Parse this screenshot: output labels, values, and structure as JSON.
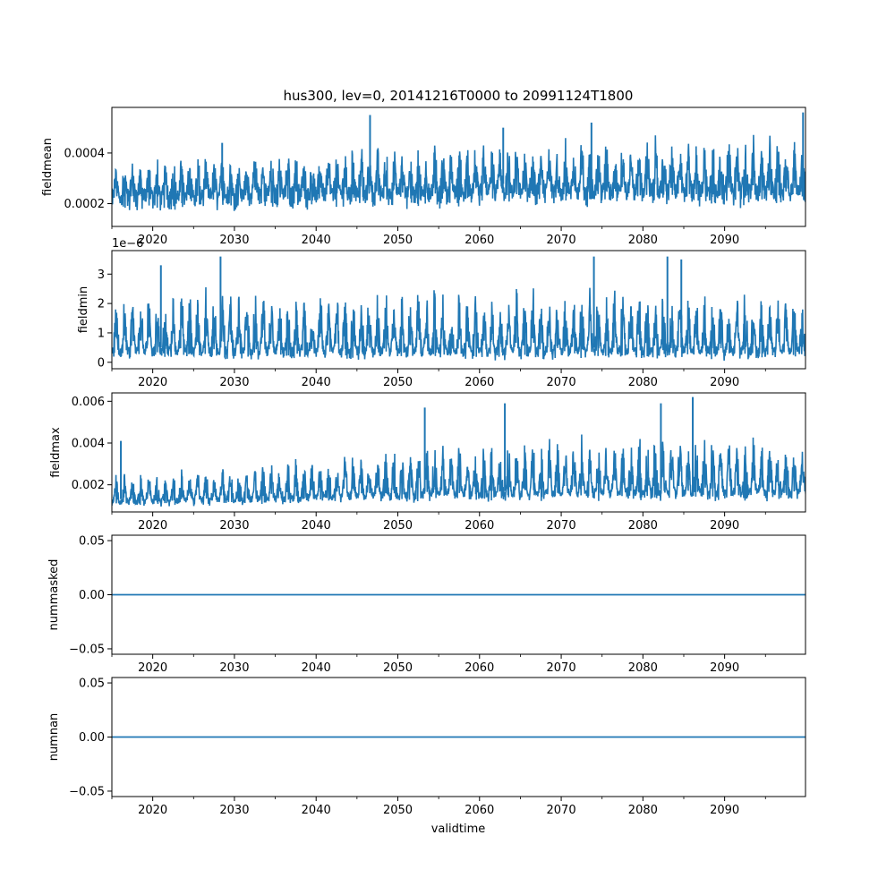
{
  "figure": {
    "title": "hus300, lev=0, 20141216T0000 to 20991124T1800",
    "xlabel": "validtime"
  },
  "colors": {
    "series": "#1f77b4",
    "axes": "#000000",
    "background": "#ffffff"
  },
  "chart_data": [
    {
      "type": "line",
      "ylabel": "fieldmean",
      "xlim": [
        2015.0,
        2099.9
      ],
      "ylim": [
        0.00011,
        0.00058
      ],
      "xticks": [
        2020,
        2030,
        2040,
        2050,
        2060,
        2070,
        2080,
        2090
      ],
      "xtick_labels": [
        "2020",
        "2030",
        "2040",
        "2050",
        "2060",
        "2070",
        "2080",
        "2090"
      ],
      "yticks": [
        0.0002,
        0.0004
      ],
      "ytick_labels": [
        "0.0002",
        "0.0004"
      ],
      "offset_text": "",
      "series": [
        {
          "x": [
            2015,
            2025,
            2035,
            2045,
            2055,
            2065,
            2075,
            2085,
            2095,
            2099.9
          ],
          "y": [
            0.00026,
            0.00026,
            0.00027,
            0.00027,
            0.00027,
            0.00028,
            0.00028,
            0.00028,
            0.00028,
            0.00028
          ],
          "seasonal_min": [
            0.000155,
            0.00016,
            0.00017,
            0.000175,
            0.000175,
            0.000175,
            0.00018,
            0.00018,
            0.00018,
            0.00018
          ],
          "seasonal_max": [
            0.00038,
            0.0004,
            0.00042,
            0.00044,
            0.00045,
            0.00046,
            0.00047,
            0.00048,
            0.0005,
            0.0005
          ],
          "peaks": [
            [
              2028.5,
              0.00044
            ],
            [
              2046.6,
              0.00055
            ],
            [
              2073.7,
              0.00052
            ],
            [
              2099.6,
              0.00056
            ],
            [
              2062.9,
              0.0005
            ]
          ]
        }
      ]
    },
    {
      "type": "line",
      "ylabel": "fieldmin",
      "xlim": [
        2015.0,
        2099.9
      ],
      "ylim": [
        -2.2e-07,
        3.8e-06
      ],
      "xticks": [
        2020,
        2030,
        2040,
        2050,
        2060,
        2070,
        2080,
        2090
      ],
      "xtick_labels": [
        "2020",
        "2030",
        "2040",
        "2050",
        "2060",
        "2070",
        "2080",
        "2090"
      ],
      "yticks": [
        0,
        1e-06,
        2e-06,
        3e-06
      ],
      "ytick_labels": [
        "0",
        "1",
        "2",
        "3"
      ],
      "offset_text": "1e−6",
      "series": [
        {
          "x": [
            2015,
            2025,
            2035,
            2045,
            2055,
            2065,
            2075,
            2085,
            2095,
            2099.9
          ],
          "y": [
            5e-07,
            5e-07,
            5e-07,
            5e-07,
            5e-07,
            5e-07,
            5e-07,
            5e-07,
            5e-07,
            5e-07
          ],
          "seasonal_min": [
            5e-08,
            5e-08,
            5e-08,
            5e-08,
            5e-08,
            5e-08,
            5e-08,
            5e-08,
            5e-08,
            5e-08
          ],
          "seasonal_max": [
            2.6e-06,
            2.7e-06,
            2.7e-06,
            2.7e-06,
            2.7e-06,
            2.7e-06,
            2.7e-06,
            2.7e-06,
            2.7e-06,
            2.6e-06
          ],
          "peaks": [
            [
              2028.3,
              3.6e-06
            ],
            [
              2074.0,
              3.6e-06
            ],
            [
              2083.0,
              3.6e-06
            ],
            [
              2021.0,
              3.3e-06
            ],
            [
              2084.7,
              3.5e-06
            ]
          ]
        }
      ]
    },
    {
      "type": "line",
      "ylabel": "fieldmax",
      "xlim": [
        2015.0,
        2099.9
      ],
      "ylim": [
        0.0007,
        0.0064
      ],
      "xticks": [
        2020,
        2030,
        2040,
        2050,
        2060,
        2070,
        2080,
        2090
      ],
      "xtick_labels": [
        "2020",
        "2030",
        "2040",
        "2050",
        "2060",
        "2070",
        "2080",
        "2090"
      ],
      "yticks": [
        0.002,
        0.004,
        0.006
      ],
      "ytick_labels": [
        "0.002",
        "0.004",
        "0.006"
      ],
      "offset_text": "",
      "series": [
        {
          "x": [
            2015,
            2025,
            2035,
            2045,
            2055,
            2065,
            2075,
            2085,
            2095,
            2099.9
          ],
          "y": [
            0.0013,
            0.0014,
            0.0015,
            0.0016,
            0.0017,
            0.0017,
            0.0018,
            0.0018,
            0.0018,
            0.0018
          ],
          "seasonal_min": [
            0.0009,
            0.00095,
            0.001,
            0.0011,
            0.0011,
            0.0012,
            0.0012,
            0.0012,
            0.0012,
            0.0012
          ],
          "seasonal_max": [
            0.0026,
            0.0029,
            0.0032,
            0.0038,
            0.0044,
            0.0045,
            0.0046,
            0.0047,
            0.0044,
            0.004
          ],
          "peaks": [
            [
              2016.1,
              0.0041
            ],
            [
              2086.1,
              0.0062
            ],
            [
              2063.1,
              0.0059
            ],
            [
              2082.2,
              0.0059
            ],
            [
              2053.3,
              0.0057
            ]
          ]
        }
      ]
    },
    {
      "type": "line",
      "ylabel": "nummasked",
      "xlim": [
        2015.0,
        2099.9
      ],
      "ylim": [
        -0.055,
        0.055
      ],
      "xticks": [
        2020,
        2030,
        2040,
        2050,
        2060,
        2070,
        2080,
        2090
      ],
      "xtick_labels": [
        "2020",
        "2030",
        "2040",
        "2050",
        "2060",
        "2070",
        "2080",
        "2090"
      ],
      "yticks": [
        -0.05,
        0.0,
        0.05
      ],
      "ytick_labels": [
        "−0.05",
        "0.00",
        "0.05"
      ],
      "offset_text": "",
      "series": [
        {
          "x": [
            2015.0,
            2099.9
          ],
          "y": [
            0,
            0
          ]
        }
      ]
    },
    {
      "type": "line",
      "ylabel": "numnan",
      "xlim": [
        2015.0,
        2099.9
      ],
      "ylim": [
        -0.055,
        0.055
      ],
      "xticks": [
        2020,
        2030,
        2040,
        2050,
        2060,
        2070,
        2080,
        2090
      ],
      "xtick_labels": [
        "2020",
        "2030",
        "2040",
        "2050",
        "2060",
        "2070",
        "2080",
        "2090"
      ],
      "yticks": [
        -0.05,
        0.0,
        0.05
      ],
      "ytick_labels": [
        "−0.05",
        "0.00",
        "0.05"
      ],
      "offset_text": "",
      "series": [
        {
          "x": [
            2015.0,
            2099.9
          ],
          "y": [
            0,
            0
          ]
        }
      ]
    }
  ]
}
